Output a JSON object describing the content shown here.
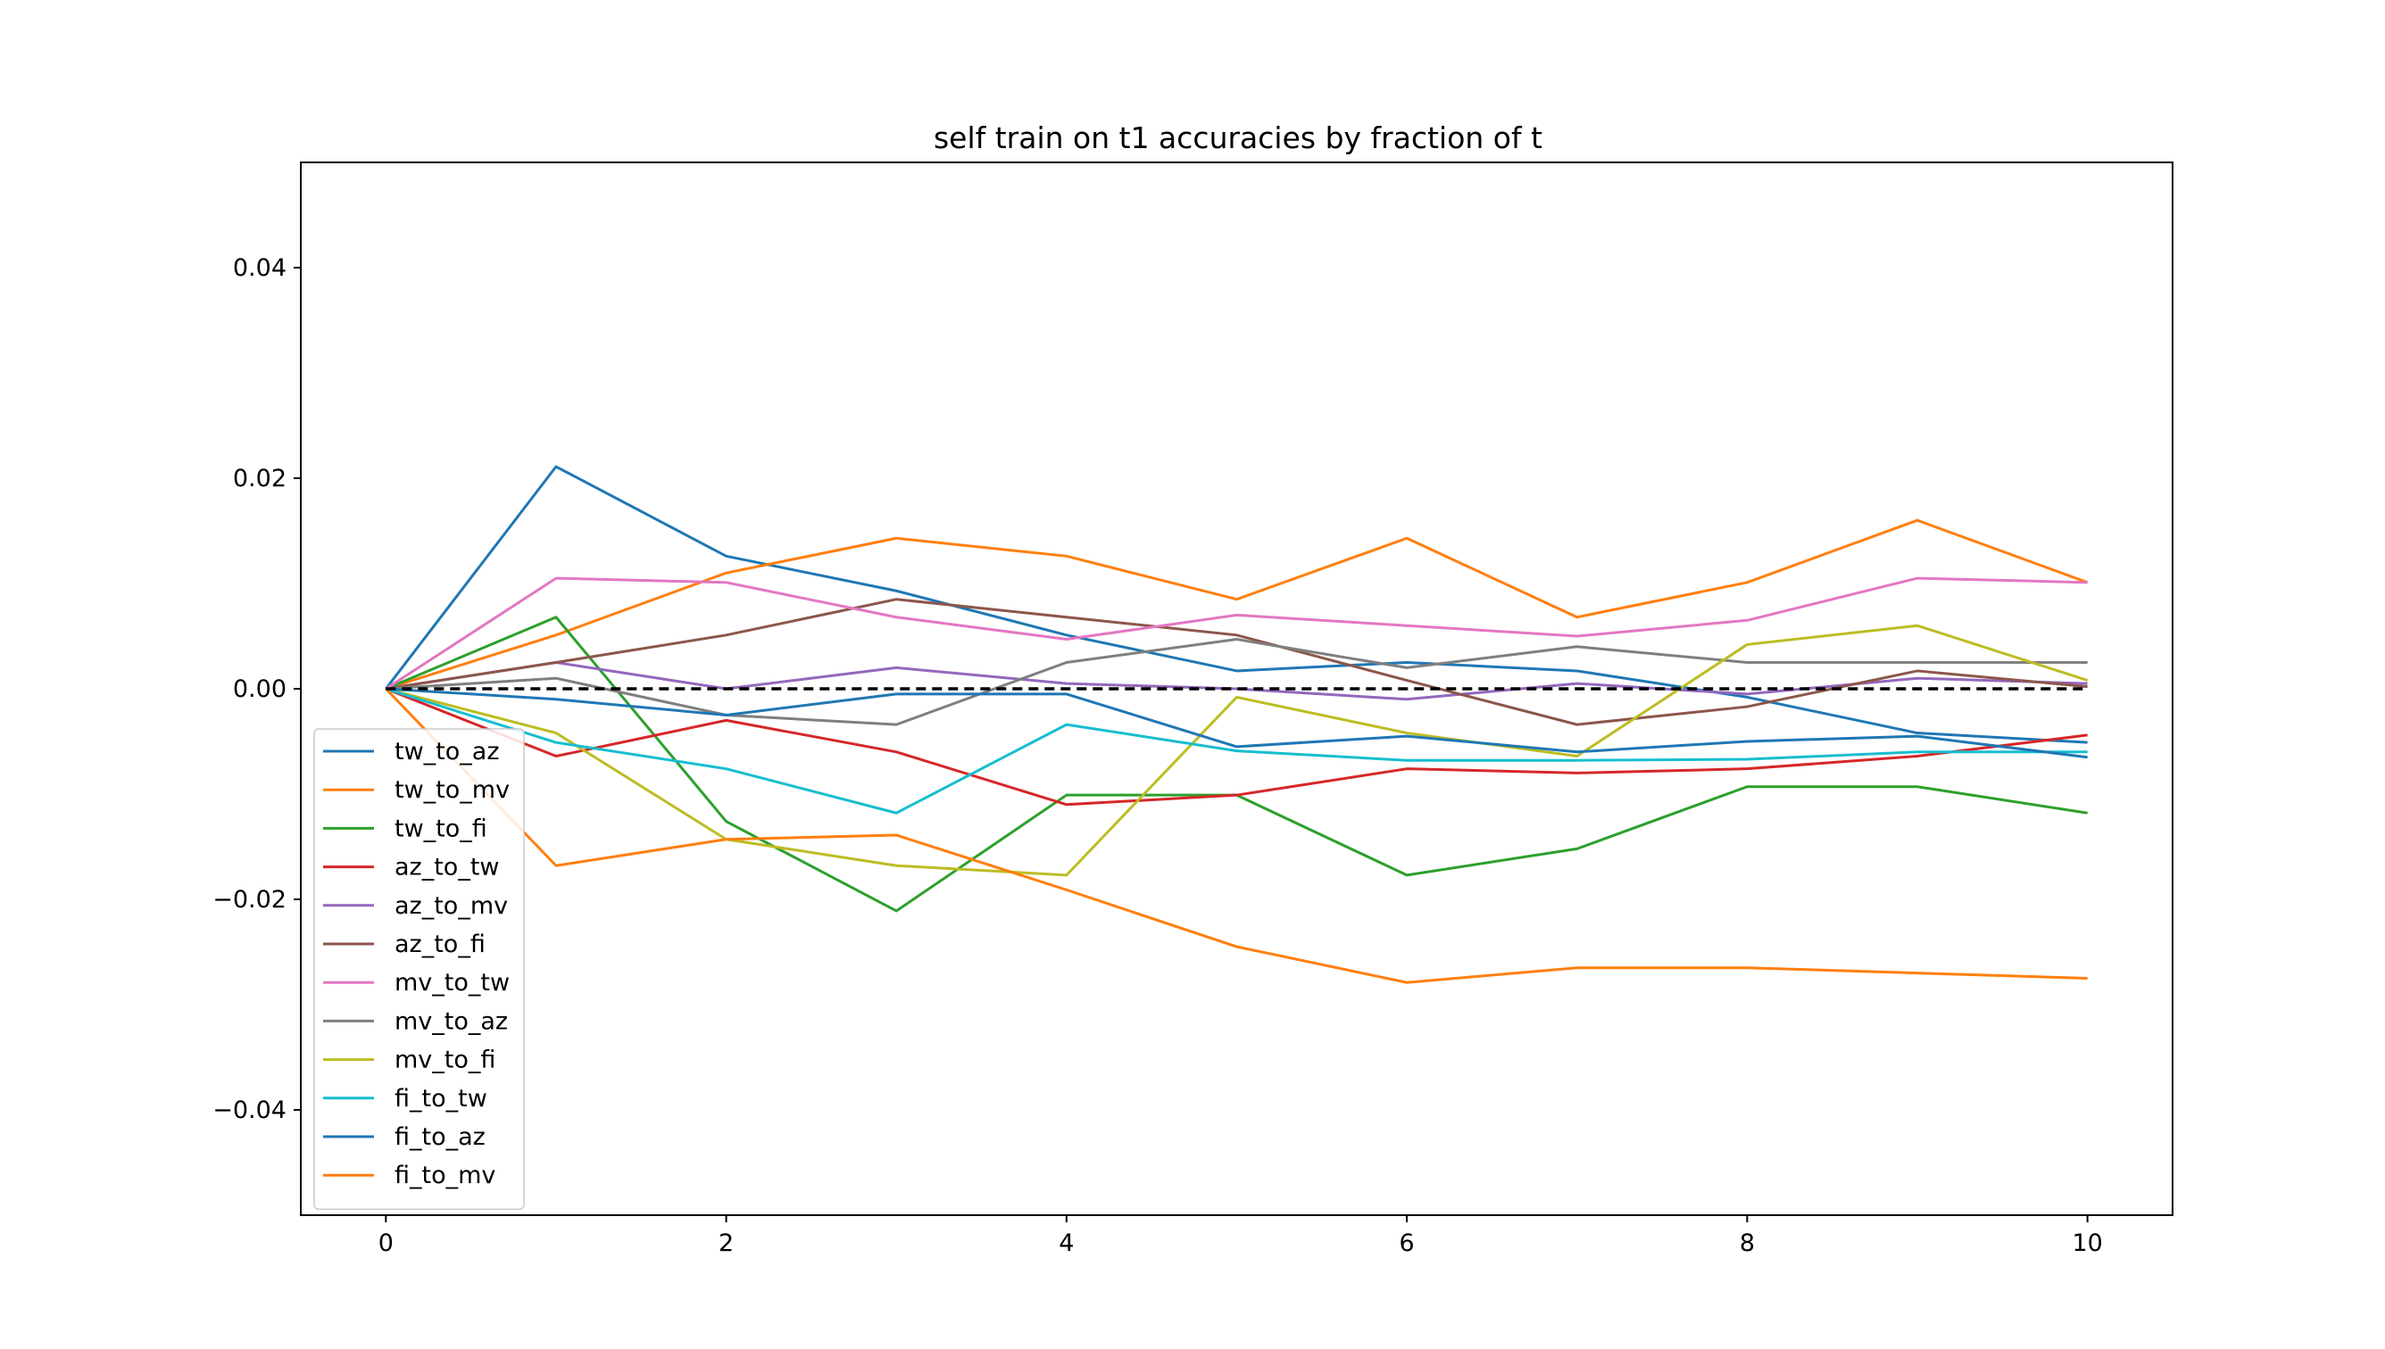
{
  "chart_data": {
    "type": "line",
    "title": "self train on t1 accuracies by fraction of t",
    "xlabel": "",
    "ylabel": "",
    "xlim": [
      -0.5,
      10.5
    ],
    "ylim": [
      -0.05,
      0.05
    ],
    "xticks": [
      0,
      2,
      4,
      6,
      8,
      10
    ],
    "xtick_labels": [
      "0",
      "2",
      "4",
      "6",
      "8",
      "10"
    ],
    "yticks": [
      0.04,
      0.02,
      0.0,
      -0.02,
      -0.04
    ],
    "ytick_labels": [
      "0.04",
      "0.02",
      "0.00",
      "−0.02",
      "−0.04"
    ],
    "grid": false,
    "legend_position": "lower-left",
    "x": [
      0,
      1,
      2,
      3,
      4,
      5,
      6,
      7,
      8,
      9,
      10
    ],
    "baseline": {
      "y": 0.0,
      "color": "#000000",
      "style": "dashed"
    },
    "series": [
      {
        "name": "tw_to_az",
        "color": "#1f77b4",
        "values": [
          0,
          0.0211,
          0.0126,
          0.0093,
          0.0051,
          0.0017,
          0.0025,
          0.0017,
          -0.0008,
          -0.0042,
          -0.0051
        ]
      },
      {
        "name": "tw_to_mv",
        "color": "#ff7f0e",
        "values": [
          0,
          0.0051,
          0.011,
          0.0143,
          0.0126,
          0.0085,
          0.0143,
          0.0068,
          0.0101,
          0.016,
          0.0101
        ]
      },
      {
        "name": "tw_to_fi",
        "color": "#2ca02c",
        "values": [
          0,
          0.0068,
          -0.0126,
          -0.0211,
          -0.0101,
          -0.0101,
          -0.0177,
          -0.0152,
          -0.0093,
          -0.0093,
          -0.0118
        ]
      },
      {
        "name": "az_to_tw",
        "color": "#d62728",
        "values": [
          0,
          -0.0064,
          -0.003,
          -0.006,
          -0.011,
          -0.0101,
          -0.0076,
          -0.008,
          -0.0076,
          -0.0064,
          -0.0044
        ]
      },
      {
        "name": "az_to_mv",
        "color": "#9467bd",
        "values": [
          0,
          0.0025,
          0.0,
          0.002,
          0.0005,
          0.0,
          -0.001,
          0.0005,
          -0.0005,
          0.001,
          0.0005
        ]
      },
      {
        "name": "az_to_fi",
        "color": "#8c564b",
        "values": [
          0,
          0.0025,
          0.0051,
          0.0085,
          0.0068,
          0.0051,
          0.0008,
          -0.0034,
          -0.0017,
          0.0017,
          0.0002
        ]
      },
      {
        "name": "mv_to_tw",
        "color": "#e377c2",
        "values": [
          0,
          0.0105,
          0.0101,
          0.0068,
          0.0047,
          0.007,
          0.006,
          0.005,
          0.0065,
          0.0105,
          0.0101
        ]
      },
      {
        "name": "mv_to_az",
        "color": "#7f7f7f",
        "values": [
          0,
          0.001,
          -0.0025,
          -0.0034,
          0.0025,
          0.0047,
          0.002,
          0.004,
          0.0025,
          0.0025,
          0.0025
        ]
      },
      {
        "name": "mv_to_fi",
        "color": "#bcbd22",
        "values": [
          0,
          -0.0042,
          -0.0143,
          -0.0168,
          -0.0177,
          -0.0008,
          -0.0042,
          -0.0064,
          0.0042,
          0.006,
          0.0008
        ]
      },
      {
        "name": "fi_to_tw",
        "color": "#17becf",
        "values": [
          0,
          -0.0051,
          -0.0076,
          -0.0118,
          -0.0034,
          -0.0059,
          -0.0068,
          -0.0068,
          -0.0067,
          -0.006,
          -0.006
        ]
      },
      {
        "name": "fi_to_az",
        "color": "#1f77b4",
        "values": [
          0,
          -0.001,
          -0.0025,
          -0.0005,
          -0.0005,
          -0.0055,
          -0.0045,
          -0.006,
          -0.005,
          -0.0045,
          -0.0065
        ]
      },
      {
        "name": "fi_to_mv",
        "color": "#ff7f0e",
        "values": [
          0,
          -0.0168,
          -0.0143,
          -0.0139,
          -0.0191,
          -0.0245,
          -0.0279,
          -0.0265,
          -0.0265,
          -0.027,
          -0.0275
        ]
      }
    ]
  }
}
